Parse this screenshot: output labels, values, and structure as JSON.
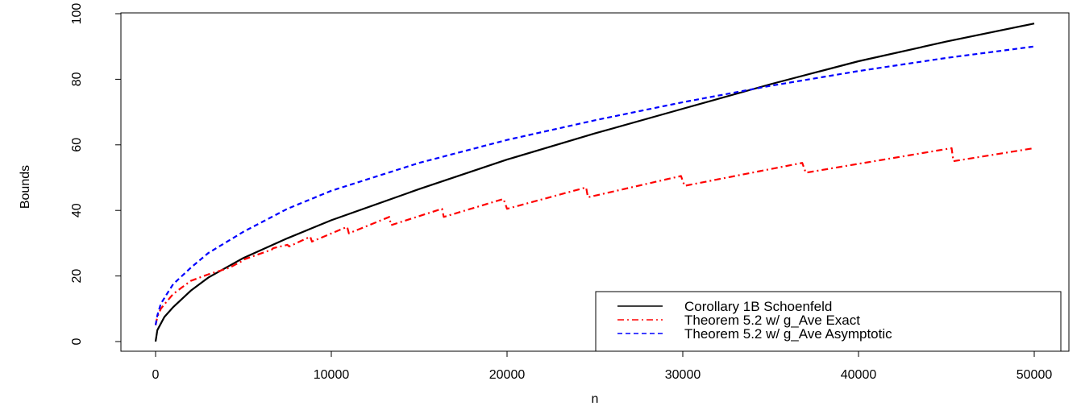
{
  "chart_data": {
    "type": "line",
    "title": "",
    "xlabel": "n",
    "ylabel": "Bounds",
    "xlim": [
      0,
      50000
    ],
    "ylim": [
      0,
      100
    ],
    "xticks": [
      0,
      10000,
      20000,
      30000,
      40000,
      50000
    ],
    "xtick_labels": [
      "0",
      "10000",
      "20000",
      "30000",
      "40000",
      "50000"
    ],
    "yticks": [
      0,
      20,
      40,
      60,
      80,
      100
    ],
    "ytick_labels": [
      "0",
      "20",
      "40",
      "60",
      "80",
      "100"
    ],
    "grid": false,
    "legend_position": "bottom-right",
    "series": [
      {
        "name": "Corollary 1B Schoenfeld",
        "color": "#000000",
        "style": "solid",
        "x": [
          0,
          100,
          500,
          1000,
          2000,
          3000,
          5000,
          7500,
          10000,
          15000,
          20000,
          25000,
          30000,
          35000,
          40000,
          45000,
          50000
        ],
        "y": [
          0,
          3.5,
          7.5,
          10.5,
          15.5,
          19.5,
          25.5,
          31.5,
          37,
          46.5,
          55.5,
          63.5,
          71,
          78.5,
          85.5,
          91.5,
          97
        ]
      },
      {
        "name": "Theorem 5.2 w/ g_Ave Exact",
        "color": "#ff0000",
        "style": "dashdot",
        "x": [
          0,
          100,
          300,
          600,
          1000,
          1500,
          2000,
          2500,
          3000,
          3600,
          4200,
          4900,
          5000,
          5800,
          6600,
          6700,
          7500,
          7600,
          8800,
          8900,
          10900,
          11000,
          13300,
          13400,
          16300,
          16400,
          19800,
          20000,
          24500,
          24600,
          29900,
          30100,
          36800,
          37000,
          45300,
          45400,
          50000
        ],
        "y": [
          5,
          7.5,
          10,
          12,
          14.5,
          16.5,
          18.5,
          19.5,
          20.5,
          21.5,
          22.5,
          24.5,
          25,
          26.5,
          28,
          28.5,
          29.5,
          29,
          32,
          30.5,
          35,
          33,
          38,
          35.5,
          40.5,
          38,
          43.5,
          40.5,
          47,
          44,
          50.5,
          47.5,
          54.5,
          51.5,
          59,
          55,
          59
        ]
      },
      {
        "name": "Theorem 5.2 w/ g_Ave Asymptotic",
        "color": "#0000ff",
        "style": "dashed",
        "x": [
          0,
          100,
          300,
          700,
          1000,
          2000,
          3000,
          5000,
          7500,
          10000,
          15000,
          20000,
          25000,
          30000,
          35000,
          40000,
          45000,
          50000
        ],
        "y": [
          5,
          8,
          11.5,
          15,
          17.5,
          22.5,
          27,
          33.5,
          40.5,
          46,
          54.5,
          61.5,
          67.5,
          73,
          78,
          82.5,
          86.5,
          90
        ]
      }
    ]
  }
}
